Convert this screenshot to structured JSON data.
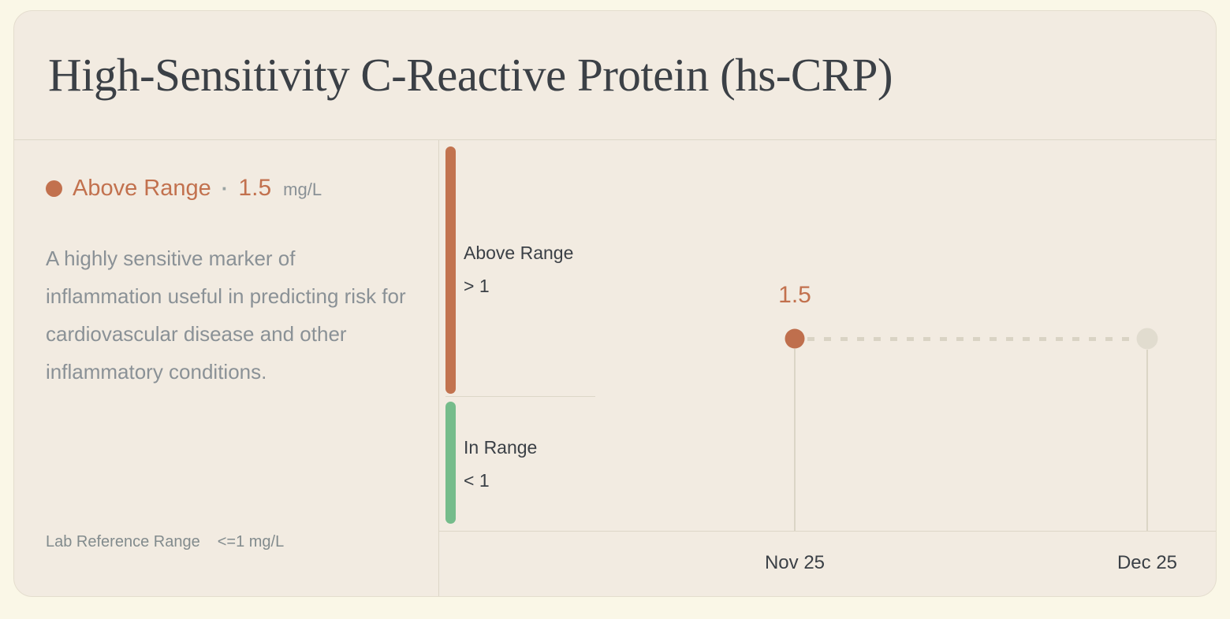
{
  "colors": {
    "page_bg": "#FAF7E7",
    "card_bg": "#F2EBE1",
    "card_border": "#E4DDCE",
    "title_text": "#3B4046",
    "muted_text": "#8A9196",
    "accent_orange": "#C2714E",
    "accent_green": "#75BC8B",
    "muted_line": "#DDD7C8",
    "empty_point": "#E1DCCF"
  },
  "header": {
    "title": "High-Sensitivity C-Reactive Protein (hs-CRP)"
  },
  "summary": {
    "status_label": "Above Range",
    "separator": "·",
    "value": "1.5",
    "unit": "mg/L",
    "description": "A highly sensitive marker of inflammation useful in predicting risk for cardiovascular disease and other inflammatory conditions.",
    "reference_label": "Lab Reference Range",
    "reference_value": "<=1 mg/L"
  },
  "chart_data": {
    "type": "scatter",
    "title": "",
    "unit": "mg/L",
    "x_labels": [
      "Nov 25",
      "Dec 25"
    ],
    "points": [
      {
        "x": "Nov 25",
        "value": 1.5,
        "label": "1.5",
        "state": "above-range"
      },
      {
        "x": "Dec 25",
        "value": null,
        "label": "",
        "state": "no-data"
      }
    ],
    "bands": [
      {
        "name": "Above Range",
        "threshold": "> 1",
        "color": "#C2734F"
      },
      {
        "name": "In Range",
        "threshold": "< 1",
        "color": "#75BC8B"
      }
    ],
    "connector_style": "dashed",
    "legend_position": "left-bands",
    "grid": false
  }
}
